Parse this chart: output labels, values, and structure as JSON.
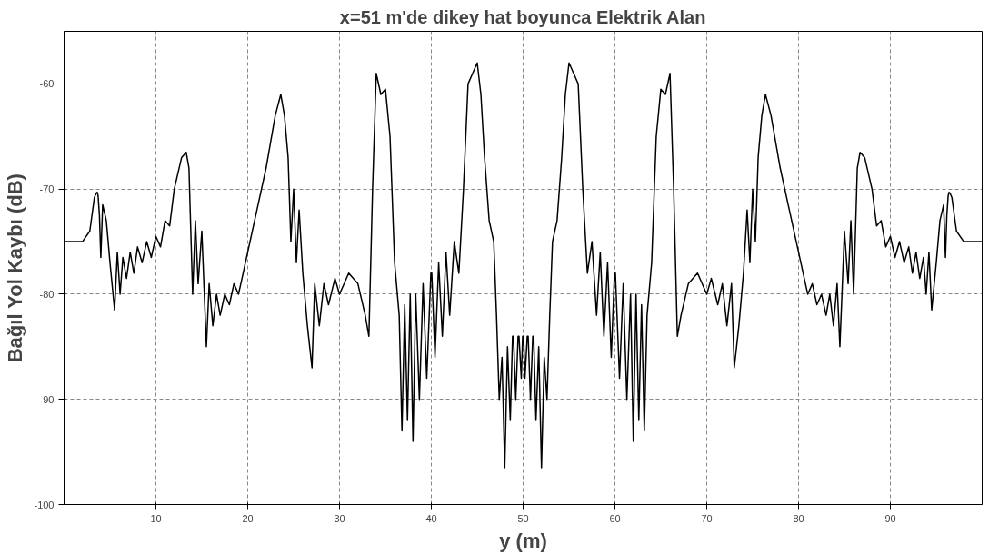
{
  "chart_data": {
    "type": "line",
    "title": "x=51 m'de dikey hat boyunca Elektrik Alan",
    "xlabel": "y (m)",
    "ylabel": "Bağıl Yol Kaybı (dB)",
    "xlim": [
      0,
      100
    ],
    "ylim": [
      -100,
      -55
    ],
    "xticks": [
      10,
      20,
      30,
      40,
      50,
      60,
      70,
      80,
      90
    ],
    "yticks": [
      -100,
      -90,
      -80,
      -70,
      -60
    ],
    "grid": true,
    "marker": "none",
    "line_style": "solid",
    "series": [
      {
        "color": "#000000",
        "x": [
          0,
          2,
          2.8,
          3.3,
          3.5,
          3.6,
          3.7,
          3.85,
          4,
          4.2,
          4.6,
          5,
          5.5,
          5.8,
          6.1,
          6.4,
          6.8,
          7.2,
          7.6,
          8,
          8.5,
          9,
          9.5,
          10,
          10.5,
          11,
          11.5,
          12,
          12.8,
          13.3,
          13.6,
          14,
          14.3,
          14.6,
          15,
          15.5,
          15.8,
          16.2,
          16.6,
          17,
          17.5,
          18,
          18.5,
          19,
          19.5,
          20,
          21,
          22,
          23,
          23.6,
          24,
          24.4,
          24.7,
          25,
          25.3,
          25.6,
          26,
          26.5,
          27,
          27.3,
          27.8,
          28.3,
          28.8,
          29.5,
          30,
          31,
          32,
          32.8,
          33.2,
          33.6,
          34,
          34.5,
          35,
          35.5,
          36,
          36.5,
          36.8,
          37.1,
          37.4,
          37.7,
          38,
          38.3,
          38.7,
          39.1,
          39.5,
          39.95,
          40.05,
          40.4,
          40.8,
          41.2,
          41.6,
          42,
          42.5,
          43,
          43.5,
          44,
          44.5,
          45,
          45.4,
          45.8,
          46.3,
          46.8,
          47.1,
          47.4,
          47.7,
          48,
          48.3,
          48.6,
          48.85,
          48.95,
          49.2,
          49.45,
          49.55,
          49.8,
          49.95,
          50.05,
          50.2,
          50.45,
          50.55,
          50.8,
          51.05,
          51.15,
          51.4,
          51.7,
          52,
          52.3,
          52.6,
          52.9,
          53.2,
          53.7,
          54.2,
          54.6,
          55,
          55.5,
          56,
          56.5,
          57,
          57.5,
          58,
          58.4,
          58.8,
          59.2,
          59.6,
          59.95,
          60.05,
          60.5,
          60.9,
          61.3,
          61.7,
          62,
          62.3,
          62.6,
          62.9,
          63.2,
          63.5,
          64,
          64.5,
          65,
          65.5,
          66,
          66.4,
          66.8,
          67.2,
          68,
          69,
          70,
          70.5,
          71.2,
          71.7,
          72.2,
          72.7,
          73,
          73.5,
          74,
          74.4,
          74.7,
          75,
          75.3,
          75.6,
          76,
          76.4,
          77,
          78,
          79,
          80,
          80.5,
          81,
          81.5,
          82,
          82.5,
          83,
          83.4,
          83.8,
          84.2,
          84.5,
          85,
          85.4,
          85.7,
          86,
          86.4,
          86.7,
          87.2,
          88,
          88.5,
          89,
          89.5,
          90,
          90.5,
          91,
          91.5,
          92,
          92.4,
          92.8,
          93.2,
          93.6,
          93.9,
          94.2,
          94.5,
          95,
          95.4,
          95.8,
          96,
          96.15,
          96.3,
          96.4,
          96.5,
          96.7,
          97.2,
          98,
          100
        ],
        "values": [
          -75,
          -75,
          -74,
          -70.8,
          -70.4,
          -70.3,
          -70.6,
          -72.5,
          -76.5,
          -71.5,
          -73,
          -77,
          -81.5,
          -76,
          -80,
          -76.5,
          -78.5,
          -76,
          -78,
          -75.5,
          -77,
          -75,
          -76.5,
          -74.5,
          -75.5,
          -73,
          -73.5,
          -70,
          -67,
          -66.5,
          -68,
          -80,
          -73,
          -79,
          -74,
          -85,
          -79,
          -83,
          -80,
          -82,
          -80,
          -81,
          -79,
          -80,
          -78,
          -76,
          -72,
          -68,
          -63,
          -61,
          -63,
          -67,
          -75,
          -70,
          -77,
          -72,
          -78,
          -83,
          -87,
          -79,
          -83,
          -79,
          -81,
          -78.5,
          -80,
          -78,
          -79,
          -82,
          -84,
          -70,
          -59,
          -61,
          -60.5,
          -65,
          -77,
          -82,
          -93,
          -81,
          -92,
          -80,
          -94,
          -80,
          -90,
          -79,
          -88,
          -78,
          -78,
          -86,
          -77,
          -84,
          -76,
          -82,
          -75,
          -78,
          -70,
          -60,
          -59,
          -58,
          -61,
          -67,
          -73,
          -75,
          -82,
          -90,
          -86,
          -96.5,
          -85,
          -92,
          -84,
          -84,
          -90,
          -84,
          -84,
          -88,
          -84,
          -84,
          -88,
          -84,
          -84,
          -90,
          -84,
          -84,
          -92,
          -85,
          -96.5,
          -86,
          -90,
          -82,
          -75,
          -73,
          -67,
          -61,
          -58,
          -59,
          -60,
          -70,
          -78,
          -75,
          -82,
          -76,
          -84,
          -77,
          -86,
          -78,
          -78,
          -88,
          -79,
          -90,
          -80,
          -94,
          -80,
          -92,
          -81,
          -93,
          -82,
          -77,
          -65,
          -60.5,
          -61,
          -59,
          -70,
          -84,
          -82,
          -79,
          -78,
          -80,
          -78.5,
          -81,
          -79,
          -83,
          -79,
          -87,
          -83,
          -78,
          -72,
          -77,
          -70,
          -75,
          -67,
          -63,
          -61,
          -63,
          -68,
          -72,
          -76,
          -78,
          -80,
          -79,
          -81,
          -80,
          -82,
          -80,
          -83,
          -79,
          -85,
          -74,
          -79,
          -73,
          -80,
          -68,
          -66.5,
          -67,
          -70,
          -73.5,
          -73,
          -75.5,
          -74.5,
          -76.5,
          -75,
          -77,
          -75.5,
          -78,
          -76,
          -78.5,
          -76.5,
          -80,
          -76,
          -81.5,
          -77,
          -73,
          -71.5,
          -76.5,
          -72.5,
          -70.6,
          -70.3,
          -70.4,
          -70.8,
          -74,
          -75,
          -75
        ]
      }
    ]
  }
}
